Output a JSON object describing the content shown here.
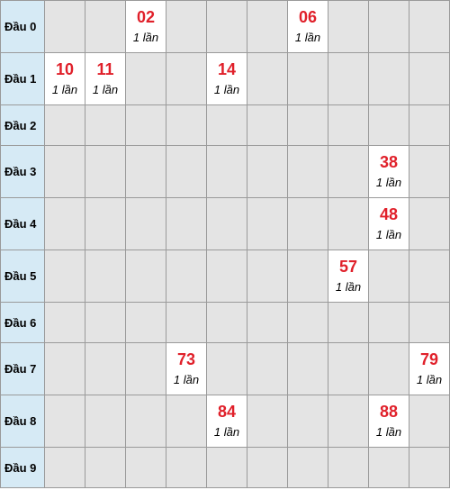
{
  "rows": [
    {
      "label": "Đầu 0",
      "cells": [
        null,
        null,
        {
          "number": "02",
          "count": "1 lần"
        },
        null,
        null,
        null,
        {
          "number": "06",
          "count": "1 lần"
        },
        null,
        null,
        null
      ]
    },
    {
      "label": "Đầu 1",
      "cells": [
        {
          "number": "10",
          "count": "1 lần"
        },
        {
          "number": "11",
          "count": "1 lần"
        },
        null,
        null,
        {
          "number": "14",
          "count": "1 lần"
        },
        null,
        null,
        null,
        null,
        null
      ]
    },
    {
      "label": "Đầu 2",
      "cells": [
        null,
        null,
        null,
        null,
        null,
        null,
        null,
        null,
        null,
        null
      ]
    },
    {
      "label": "Đầu 3",
      "cells": [
        null,
        null,
        null,
        null,
        null,
        null,
        null,
        null,
        {
          "number": "38",
          "count": "1 lần"
        },
        null
      ]
    },
    {
      "label": "Đầu 4",
      "cells": [
        null,
        null,
        null,
        null,
        null,
        null,
        null,
        null,
        {
          "number": "48",
          "count": "1 lần"
        },
        null
      ]
    },
    {
      "label": "Đầu 5",
      "cells": [
        null,
        null,
        null,
        null,
        null,
        null,
        null,
        {
          "number": "57",
          "count": "1 lần"
        },
        null,
        null
      ]
    },
    {
      "label": "Đầu 6",
      "cells": [
        null,
        null,
        null,
        null,
        null,
        null,
        null,
        null,
        null,
        null
      ]
    },
    {
      "label": "Đầu 7",
      "cells": [
        null,
        null,
        null,
        {
          "number": "73",
          "count": "1 lần"
        },
        null,
        null,
        null,
        null,
        null,
        {
          "number": "79",
          "count": "1 lần"
        }
      ]
    },
    {
      "label": "Đầu 8",
      "cells": [
        null,
        null,
        null,
        null,
        {
          "number": "84",
          "count": "1 lần"
        },
        null,
        null,
        null,
        {
          "number": "88",
          "count": "1 lần"
        },
        null
      ]
    },
    {
      "label": "Đầu 9",
      "cells": [
        null,
        null,
        null,
        null,
        null,
        null,
        null,
        null,
        null,
        null
      ]
    }
  ]
}
